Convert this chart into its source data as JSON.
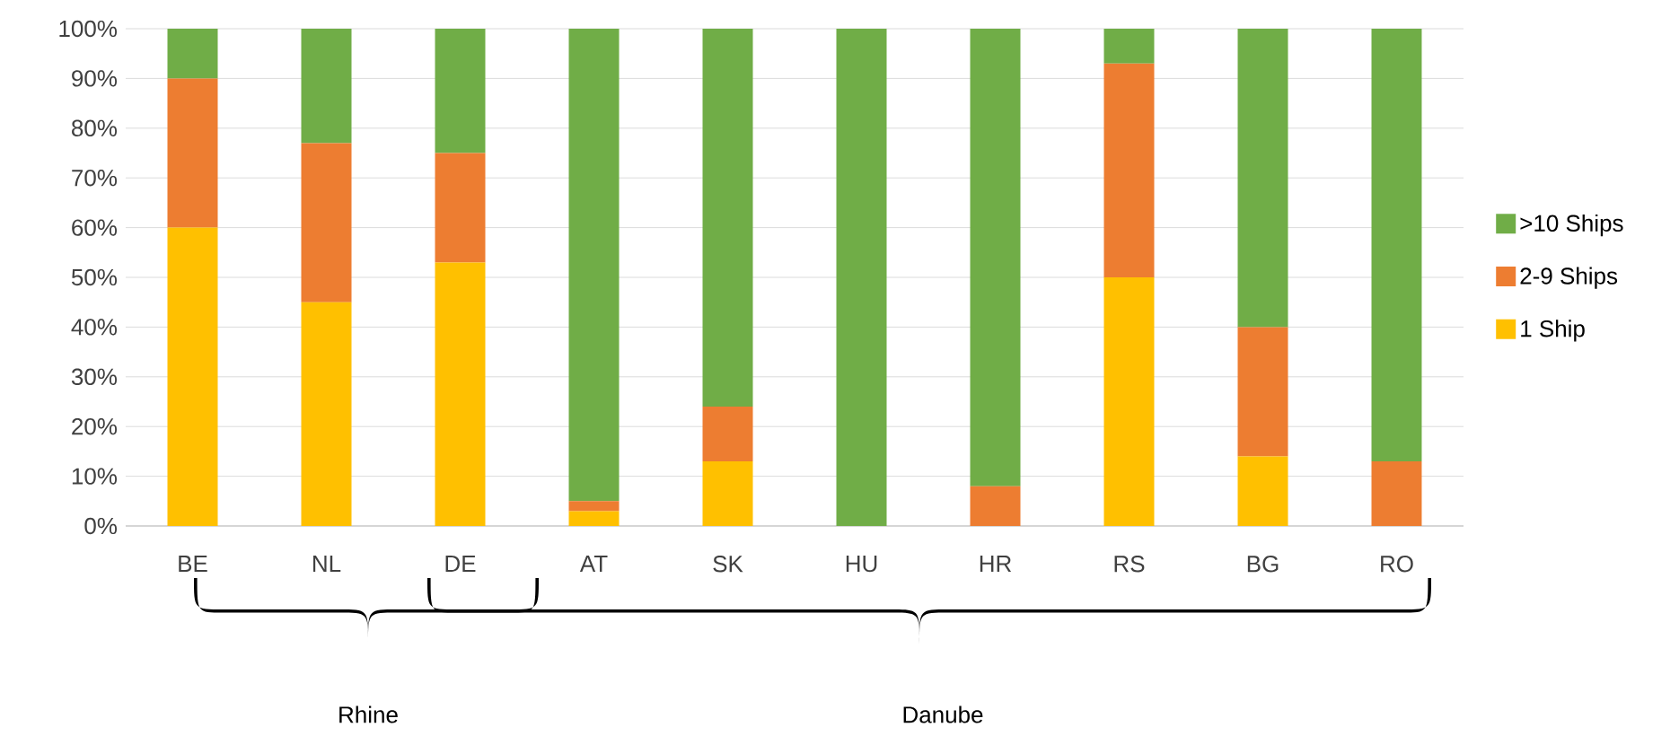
{
  "chart_data": {
    "type": "bar",
    "stacked": true,
    "categories": [
      "BE",
      "NL",
      "DE",
      "AT",
      "SK",
      "HU",
      "HR",
      "RS",
      "BG",
      "RO"
    ],
    "series": [
      {
        "name": "1 Ship",
        "color": "#ffc000",
        "values": [
          60,
          45,
          53,
          3,
          13,
          0,
          0,
          50,
          14,
          0
        ]
      },
      {
        "name": "2-9 Ships",
        "color": "#ed7d31",
        "values": [
          30,
          32,
          22,
          2,
          11,
          0,
          8,
          43,
          26,
          13
        ]
      },
      {
        "name": ">10 Ships",
        "color": "#70ad47",
        "values": [
          10,
          23,
          25,
          95,
          76,
          100,
          92,
          7,
          60,
          87
        ]
      }
    ],
    "ylim": [
      0,
      100
    ],
    "yticks": [
      {
        "value": 0,
        "label": "0%"
      },
      {
        "value": 10,
        "label": "10%"
      },
      {
        "value": 20,
        "label": "20%"
      },
      {
        "value": 30,
        "label": "30%"
      },
      {
        "value": 40,
        "label": "40%"
      },
      {
        "value": 50,
        "label": "50%"
      },
      {
        "value": 60,
        "label": "60%"
      },
      {
        "value": 70,
        "label": "70%"
      },
      {
        "value": 80,
        "label": "80%"
      },
      {
        "value": 90,
        "label": "90%"
      },
      {
        "value": 100,
        "label": "100%"
      }
    ],
    "grid": "y",
    "legend": "right",
    "annotations": [
      "Rhine",
      "Danube"
    ]
  }
}
